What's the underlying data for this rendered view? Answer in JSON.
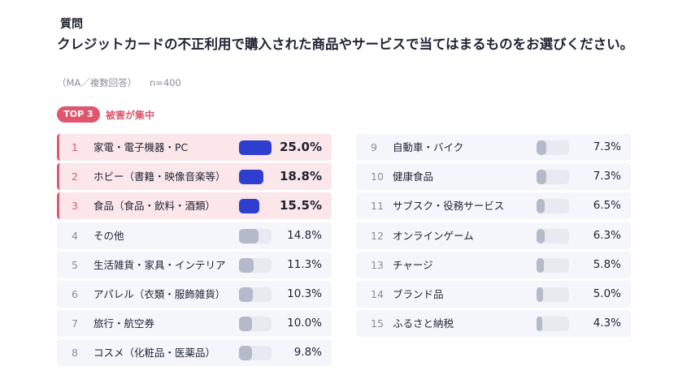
{
  "question_label": "質問",
  "question_text": "クレジットカードの不正利用で購入された商品やサービスで当てはまるものをお選びください。",
  "note": "（MA／複数回答）",
  "sample": "n=400",
  "top_badge": "TOP 3",
  "top_text": "被害が集中",
  "colors": {
    "accent": "#e0566f",
    "bar_top": "#2e3fcf",
    "bar": "#b5bacb",
    "track": "#e9eaf1"
  },
  "chart_data": {
    "type": "bar",
    "orientation": "horizontal",
    "xlim": [
      0,
      25
    ],
    "items": [
      {
        "rank": "1",
        "label": "家電・電子機器・PC",
        "value": 25.0,
        "display": "25.0%",
        "top": true
      },
      {
        "rank": "2",
        "label": "ホビー（書籍・映像音楽等）",
        "value": 18.8,
        "display": "18.8%",
        "top": true
      },
      {
        "rank": "3",
        "label": "食品（食品・飲料・酒類）",
        "value": 15.5,
        "display": "15.5%",
        "top": true
      },
      {
        "rank": "4",
        "label": "その他",
        "value": 14.8,
        "display": "14.8%",
        "top": false
      },
      {
        "rank": "5",
        "label": "生活雑貨・家具・インテリア",
        "value": 11.3,
        "display": "11.3%",
        "top": false
      },
      {
        "rank": "6",
        "label": "アパレル（衣類・服飾雑貨）",
        "value": 10.3,
        "display": "10.3%",
        "top": false
      },
      {
        "rank": "7",
        "label": "旅行・航空券",
        "value": 10.0,
        "display": "10.0%",
        "top": false
      },
      {
        "rank": "8",
        "label": "コスメ（化粧品・医薬品）",
        "value": 9.8,
        "display": "9.8%",
        "top": false
      },
      {
        "rank": "9",
        "label": "自動車・バイク",
        "value": 7.3,
        "display": "7.3%",
        "top": false
      },
      {
        "rank": "10",
        "label": "健康食品",
        "value": 7.3,
        "display": "7.3%",
        "top": false
      },
      {
        "rank": "11",
        "label": "サブスク・役務サービス",
        "value": 6.5,
        "display": "6.5%",
        "top": false
      },
      {
        "rank": "12",
        "label": "オンラインゲーム",
        "value": 6.3,
        "display": "6.3%",
        "top": false
      },
      {
        "rank": "13",
        "label": "チャージ",
        "value": 5.8,
        "display": "5.8%",
        "top": false
      },
      {
        "rank": "14",
        "label": "ブランド品",
        "value": 5.0,
        "display": "5.0%",
        "top": false
      },
      {
        "rank": "15",
        "label": "ふるさと納税",
        "value": 4.3,
        "display": "4.3%",
        "top": false
      }
    ]
  }
}
